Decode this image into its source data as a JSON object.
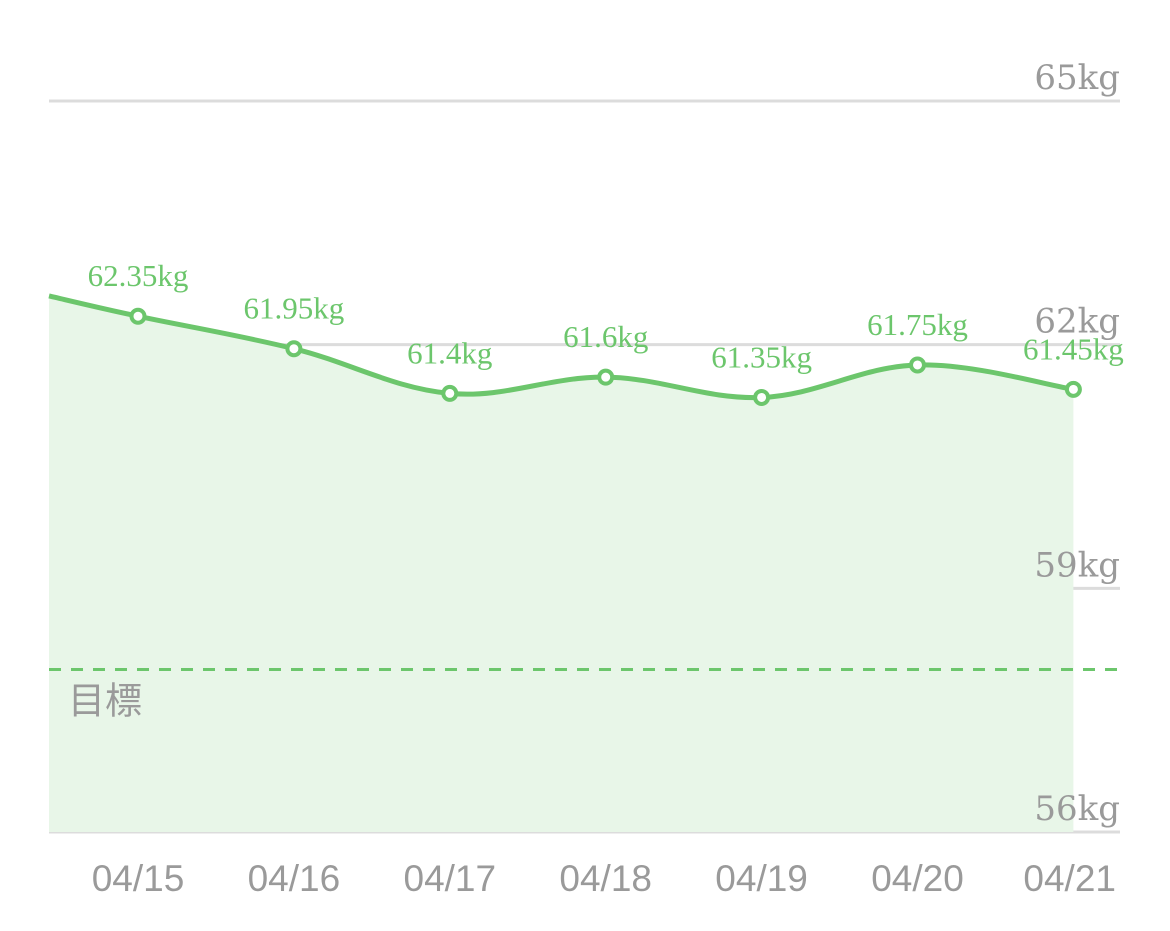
{
  "chart_data": {
    "type": "area",
    "categories": [
      "04/15",
      "04/16",
      "04/17",
      "04/18",
      "04/19",
      "04/20",
      "04/21"
    ],
    "series": [
      {
        "values": [
          62.35,
          61.95,
          61.4,
          61.6,
          61.35,
          61.75,
          61.45
        ],
        "data_labels": [
          "62.35kg",
          "61.95kg",
          "61.4kg",
          "61.6kg",
          "61.35kg",
          "61.75kg",
          "61.45kg"
        ]
      }
    ],
    "previous_value": 62.6,
    "y_ticks": [
      {
        "value": 65,
        "label": "65kg"
      },
      {
        "value": 62,
        "label": "62kg"
      },
      {
        "value": 59,
        "label": "59kg"
      },
      {
        "value": 56,
        "label": "56kg"
      }
    ],
    "ylim": [
      56,
      65
    ],
    "goal": {
      "value": 58.0,
      "label": "目標"
    },
    "colors": {
      "line": "#6cc66c",
      "area": "#e8f6e8",
      "grid": "#dcdcdc",
      "axis_text": "#9a9a9a"
    },
    "grid": true
  }
}
